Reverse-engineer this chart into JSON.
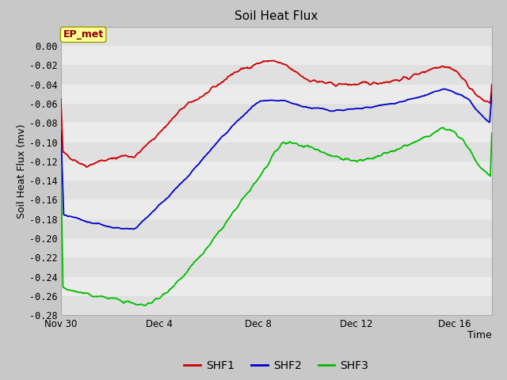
{
  "title": "Soil Heat Flux",
  "xlabel": "Time",
  "ylabel": "Soil Heat Flux (mv)",
  "ylim": [
    -0.28,
    0.02
  ],
  "yticks": [
    0.0,
    -0.02,
    -0.04,
    -0.06,
    -0.08,
    -0.1,
    -0.12,
    -0.14,
    -0.16,
    -0.18,
    -0.2,
    -0.22,
    -0.24,
    -0.26,
    -0.28
  ],
  "fig_bg_color": "#c8c8c8",
  "plot_bg_color": "#e0e0e0",
  "grid_color": "#f0f0f0",
  "annotation_text": "EP_met",
  "annotation_box_color": "#ffff99",
  "annotation_text_color": "#8b0000",
  "line_colors": [
    "#cc0000",
    "#0000cc",
    "#00bb00"
  ],
  "line_labels": [
    "SHF1",
    "SHF2",
    "SHF3"
  ],
  "xticklabels": [
    "Nov 30",
    "Dec 4",
    "Dec 8",
    "Dec 12",
    "Dec 16"
  ],
  "xtick_positions": [
    0,
    4,
    8,
    12,
    16
  ],
  "xlim": [
    0,
    17.5
  ],
  "shf1_x": [
    0,
    1,
    1.5,
    2,
    2.5,
    3,
    4,
    5,
    6,
    7,
    8,
    8.5,
    9,
    10,
    11,
    12,
    12.5,
    13,
    14,
    15,
    15.5,
    16,
    16.5,
    17,
    17.5
  ],
  "shf1_y": [
    -0.11,
    -0.125,
    -0.12,
    -0.118,
    -0.114,
    -0.115,
    -0.09,
    -0.063,
    -0.048,
    -0.028,
    -0.018,
    -0.015,
    -0.019,
    -0.035,
    -0.04,
    -0.04,
    -0.039,
    -0.038,
    -0.034,
    -0.024,
    -0.02,
    -0.025,
    -0.04,
    -0.055,
    -0.06
  ],
  "shf2_x": [
    0,
    1,
    2,
    2.5,
    3,
    4,
    5,
    6,
    7,
    8,
    9,
    10,
    11,
    12,
    13,
    14,
    15,
    15.5,
    16,
    16.5,
    17,
    17.5
  ],
  "shf2_y": [
    -0.175,
    -0.182,
    -0.188,
    -0.19,
    -0.19,
    -0.165,
    -0.14,
    -0.11,
    -0.082,
    -0.058,
    -0.057,
    -0.064,
    -0.067,
    -0.066,
    -0.062,
    -0.057,
    -0.05,
    -0.045,
    -0.048,
    -0.055,
    -0.07,
    -0.082
  ],
  "shf3_x": [
    0,
    0.5,
    1,
    1.5,
    2,
    2.5,
    3,
    3.2,
    3.5,
    4,
    5,
    6,
    7,
    8,
    9,
    10,
    11,
    12,
    12.5,
    13,
    14,
    15,
    15.5,
    16,
    16.5,
    17,
    17.5
  ],
  "shf3_y": [
    -0.25,
    -0.255,
    -0.258,
    -0.26,
    -0.262,
    -0.265,
    -0.268,
    -0.27,
    -0.268,
    -0.262,
    -0.238,
    -0.208,
    -0.173,
    -0.138,
    -0.1,
    -0.104,
    -0.114,
    -0.12,
    -0.118,
    -0.114,
    -0.104,
    -0.093,
    -0.085,
    -0.09,
    -0.105,
    -0.125,
    -0.137
  ]
}
